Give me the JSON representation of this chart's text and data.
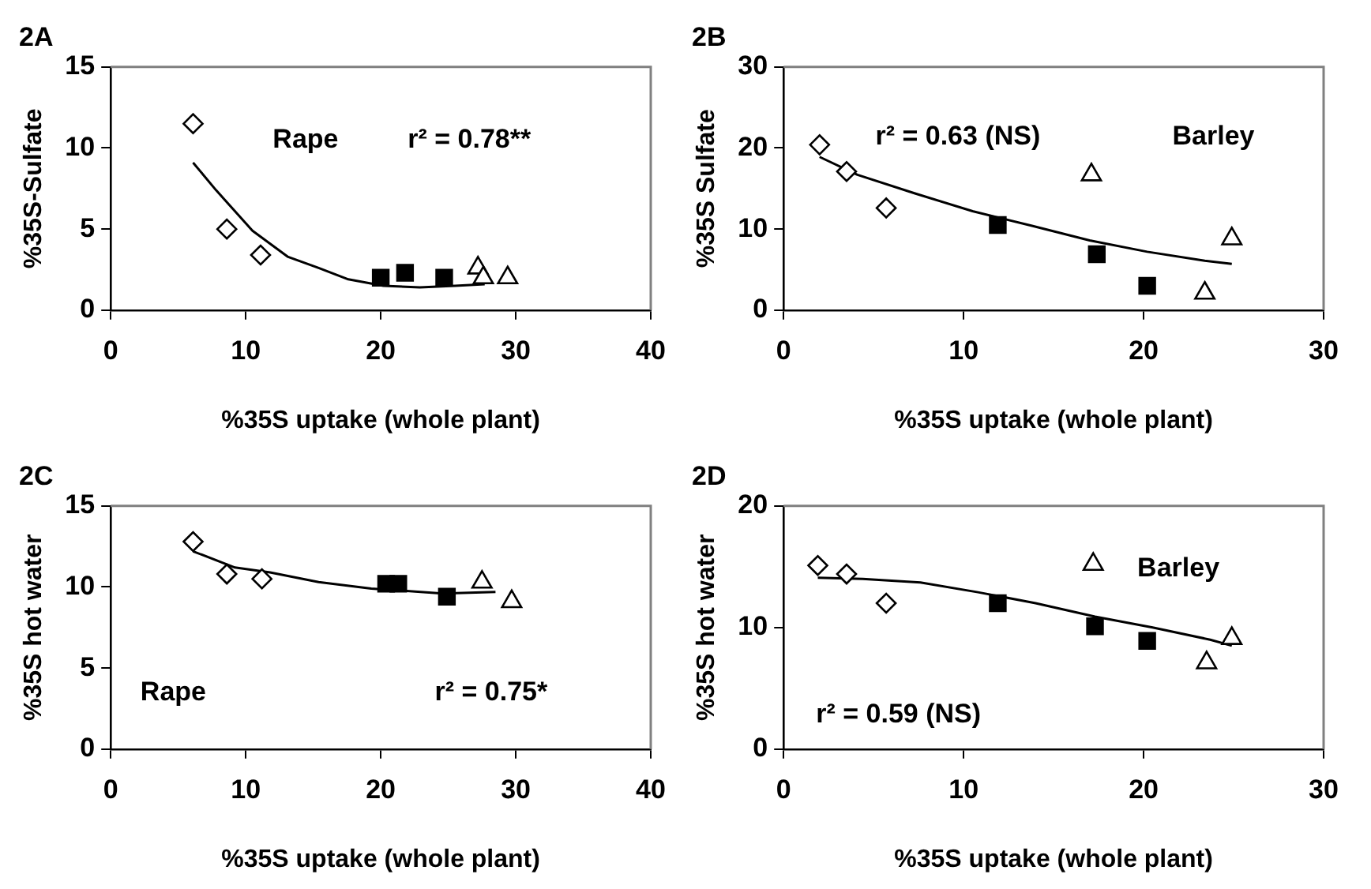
{
  "chart_data": [
    {
      "type": "scatter",
      "title": "2A",
      "xlabel": "%35S uptake (whole plant)",
      "ylabel": "%35S-Sulfate",
      "xlim": [
        0,
        40
      ],
      "xticks": [
        0,
        10,
        20,
        30,
        40
      ],
      "ylim": [
        0,
        15
      ],
      "yticks": [
        0,
        5,
        10,
        15
      ],
      "grid": false,
      "legend": false,
      "annotations": [
        "Rape",
        "r² = 0.78**"
      ],
      "series": [
        {
          "color": "#000000",
          "marker": "diamond",
          "x": [
            6.1,
            8.6,
            11.1
          ],
          "values": [
            11.5,
            5.0,
            3.4
          ]
        },
        {
          "color": "#000000",
          "marker": "square",
          "x": [
            20.0,
            21.8,
            24.7
          ],
          "values": [
            2.0,
            2.3,
            2.0
          ]
        },
        {
          "color": "#000000",
          "marker": "triangle",
          "x": [
            27.2,
            27.6,
            29.4
          ],
          "values": [
            2.6,
            2.0,
            2.0
          ]
        },
        {
          "type": "line",
          "color": "#000000",
          "marker": "none",
          "x": [
            6.1,
            7.8,
            10.5,
            13.1,
            15.4,
            17.6,
            20.2,
            22.9,
            25.5,
            27.7
          ],
          "values": [
            9.1,
            7.4,
            4.9,
            3.3,
            2.6,
            1.9,
            1.5,
            1.4,
            1.5,
            1.6
          ]
        }
      ]
    },
    {
      "type": "scatter",
      "title": "2B",
      "xlabel": "%35S uptake (whole plant)",
      "ylabel": "%35S Sulfate",
      "xlim": [
        0,
        30
      ],
      "xticks": [
        0,
        10,
        20,
        30
      ],
      "ylim": [
        0,
        30
      ],
      "yticks": [
        0,
        10,
        20,
        30
      ],
      "grid": false,
      "legend": false,
      "annotations": [
        "r² = 0.63 (NS)",
        "Barley"
      ],
      "series": [
        {
          "color": "#000000",
          "marker": "diamond",
          "x": [
            2.0,
            3.5,
            5.7
          ],
          "values": [
            20.4,
            17.1,
            12.6
          ]
        },
        {
          "color": "#000000",
          "marker": "square",
          "x": [
            11.9,
            17.4,
            20.2
          ],
          "values": [
            10.5,
            6.9,
            3.0
          ]
        },
        {
          "color": "#000000",
          "marker": "triangle",
          "x": [
            17.1,
            23.4,
            24.9
          ],
          "values": [
            16.7,
            2.1,
            8.8
          ]
        },
        {
          "type": "line",
          "color": "#000000",
          "marker": "none",
          "x": [
            2.0,
            4.1,
            7.3,
            10.5,
            13.8,
            17.0,
            20.2,
            23.4,
            24.9
          ],
          "values": [
            18.9,
            16.7,
            14.4,
            12.2,
            10.4,
            8.6,
            7.2,
            6.1,
            5.7
          ]
        }
      ]
    },
    {
      "type": "scatter",
      "title": "2C",
      "xlabel": "%35S uptake (whole plant)",
      "ylabel": "%35S hot water",
      "xlim": [
        0,
        40
      ],
      "xticks": [
        0,
        10,
        20,
        30,
        40
      ],
      "ylim": [
        0,
        15
      ],
      "yticks": [
        0,
        5,
        10,
        15
      ],
      "grid": false,
      "legend": false,
      "annotations": [
        "Rape",
        "r² = 0.75*"
      ],
      "series": [
        {
          "color": "#000000",
          "marker": "diamond",
          "x": [
            6.1,
            8.6,
            11.2
          ],
          "values": [
            12.8,
            10.8,
            10.5
          ]
        },
        {
          "color": "#000000",
          "marker": "square",
          "x": [
            20.4,
            21.3,
            24.9
          ],
          "values": [
            10.2,
            10.2,
            9.4
          ]
        },
        {
          "color": "#000000",
          "marker": "triangle",
          "x": [
            27.5,
            29.7
          ],
          "values": [
            10.3,
            9.1
          ]
        },
        {
          "type": "line",
          "color": "#000000",
          "marker": "none",
          "x": [
            6.1,
            9.2,
            11.8,
            15.4,
            19.3,
            24.6,
            28.5
          ],
          "values": [
            12.2,
            11.2,
            10.9,
            10.3,
            9.9,
            9.6,
            9.7
          ]
        }
      ]
    },
    {
      "type": "scatter",
      "title": "2D",
      "xlabel": "%35S uptake (whole plant)",
      "ylabel": "%35S hot water",
      "xlim": [
        0,
        30
      ],
      "xticks": [
        0,
        10,
        20,
        30
      ],
      "ylim": [
        0,
        20
      ],
      "yticks": [
        0,
        10,
        20
      ],
      "grid": false,
      "legend": false,
      "annotations": [
        "Barley",
        "r² = 0.59 (NS)"
      ],
      "series": [
        {
          "color": "#000000",
          "marker": "diamond",
          "x": [
            1.9,
            3.5,
            5.7
          ],
          "values": [
            15.1,
            14.4,
            12.0
          ]
        },
        {
          "color": "#000000",
          "marker": "square",
          "x": [
            11.9,
            17.3,
            20.2
          ],
          "values": [
            12.0,
            10.1,
            8.9
          ]
        },
        {
          "color": "#000000",
          "marker": "triangle",
          "x": [
            17.2,
            23.5,
            24.9
          ],
          "values": [
            15.2,
            7.1,
            9.1
          ]
        },
        {
          "type": "line",
          "color": "#000000",
          "marker": "none",
          "x": [
            1.9,
            4.4,
            7.6,
            10.8,
            14.0,
            17.3,
            20.5,
            23.7,
            24.9
          ],
          "values": [
            14.1,
            14.0,
            13.7,
            12.9,
            12.0,
            10.9,
            10.0,
            9.0,
            8.5
          ]
        }
      ]
    }
  ]
}
